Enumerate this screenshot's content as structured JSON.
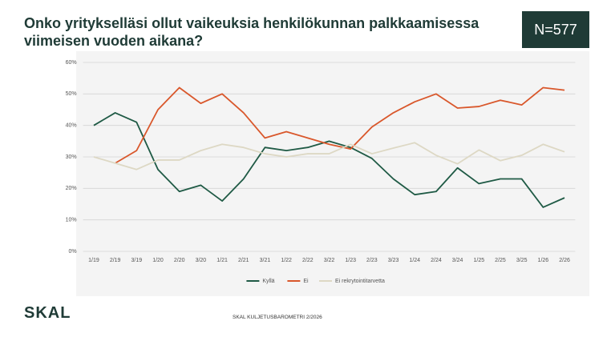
{
  "badge": "N=577",
  "logo": "SKAL",
  "footer": "SKAL KULJETUSBAROMETRI 2/2026",
  "chart_data": {
    "type": "line",
    "title": "Onko yritykselläsi ollut vaikeuksia henkilökunnan palkkaamisessa viimeisen vuoden aikana?",
    "categories": [
      "1/19",
      "2/19",
      "3/19",
      "1/20",
      "2/20",
      "3/20",
      "1/21",
      "2/21",
      "3/21",
      "1/22",
      "2/22",
      "3/22",
      "1/23",
      "2/23",
      "3/23",
      "1/24",
      "2/24",
      "3/24",
      "1/25",
      "2/25",
      "3/25",
      "1/26",
      "2/26"
    ],
    "series": [
      {
        "name": "Kyllä",
        "color": "#1f5a45",
        "values": [
          40,
          44,
          41,
          26,
          19,
          21,
          16,
          23,
          33,
          32,
          33,
          35,
          33,
          29.5,
          23,
          18,
          19,
          26.5,
          21.5,
          23,
          23,
          14,
          17
        ]
      },
      {
        "name": "Ei",
        "color": "#d9572b",
        "values": [
          null,
          28,
          32,
          45,
          52,
          47,
          50,
          44,
          36,
          38,
          36,
          34,
          32.5,
          39.5,
          44,
          47.5,
          50,
          45.5,
          46,
          48,
          46.5,
          52,
          51.2
        ]
      },
      {
        "name": "Ei rekrytointitarvetta",
        "color": "#ddd8c4",
        "values": [
          30,
          28,
          26,
          29,
          29,
          32,
          34,
          33,
          31,
          30,
          31,
          31,
          34,
          31,
          32.8,
          34.5,
          30.5,
          27.8,
          32.2,
          28.8,
          30.5,
          34,
          31.6
        ]
      }
    ],
    "ylim": [
      0,
      60
    ],
    "yticks": [
      {
        "value": 0,
        "label": "0%"
      },
      {
        "value": 10,
        "label": "10%"
      },
      {
        "value": 20,
        "label": "20%"
      },
      {
        "value": 30,
        "label": "30%"
      },
      {
        "value": 40,
        "label": "40%"
      },
      {
        "value": 50,
        "label": "50%"
      },
      {
        "value": 60,
        "label": "60%"
      }
    ],
    "grid": true,
    "legend": "bottom"
  }
}
